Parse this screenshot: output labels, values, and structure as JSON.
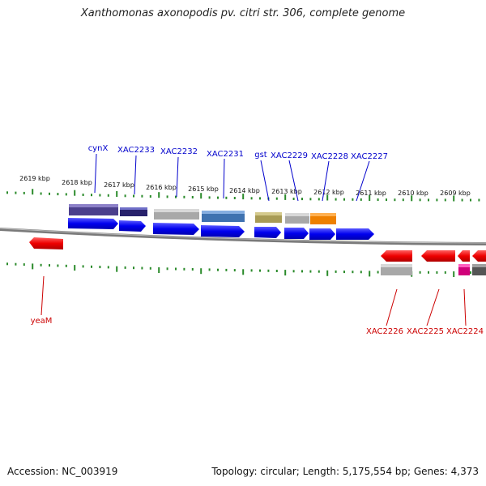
{
  "title": "Xanthomonas axonopodis pv. citri str. 306, complete genome",
  "footer": {
    "accession": "Accession: NC_003919",
    "summary": "Topology: circular; Length: 5,175,554 bp; Genes: 4,373"
  },
  "colors": {
    "forward_arrow": "#0000ee",
    "reverse_arrow": "#ee0000",
    "tick": "#2a8a2a",
    "backbone": "#808080",
    "forward_label": "#0000cc",
    "reverse_label": "#cc0000"
  },
  "scale_labels": [
    "2619 kbp",
    "2618 kbp",
    "2617 kbp",
    "2616 kbp",
    "2615 kbp",
    "2614 kbp",
    "2613 kbp",
    "2612 kbp",
    "2611 kbp",
    "2610 kbp",
    "2609 kbp"
  ],
  "forward_genes": [
    {
      "name": "cynX"
    },
    {
      "name": "XAC2233"
    },
    {
      "name": "XAC2232"
    },
    {
      "name": "XAC2231"
    },
    {
      "name": "gst"
    },
    {
      "name": "XAC2229"
    },
    {
      "name": "XAC2228"
    },
    {
      "name": "XAC2227"
    }
  ],
  "reverse_genes": [
    {
      "name": "yeaM"
    },
    {
      "name": "XAC2226"
    },
    {
      "name": "XAC2225"
    },
    {
      "name": "XAC2224"
    }
  ]
}
